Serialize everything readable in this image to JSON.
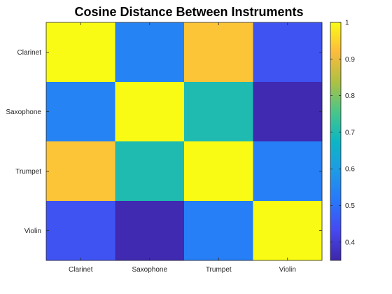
{
  "chart_data": {
    "type": "heatmap",
    "title": "Cosine Distance Between Instruments",
    "x_labels": [
      "Clarinet",
      "Saxophone",
      "Trumpet",
      "Violin"
    ],
    "y_labels": [
      "Clarinet",
      "Saxophone",
      "Trumpet",
      "Violin"
    ],
    "values": [
      [
        1.0,
        0.54,
        0.93,
        0.45
      ],
      [
        0.54,
        1.0,
        0.7,
        0.36
      ],
      [
        0.93,
        0.7,
        1.0,
        0.53
      ],
      [
        0.45,
        0.36,
        0.53,
        1.0
      ]
    ],
    "colorbar": {
      "range": [
        0.35,
        1.0
      ],
      "ticks": [
        0.4,
        0.5,
        0.6,
        0.7,
        0.8,
        0.9,
        1
      ],
      "colormap": "parula"
    },
    "grid": false
  }
}
